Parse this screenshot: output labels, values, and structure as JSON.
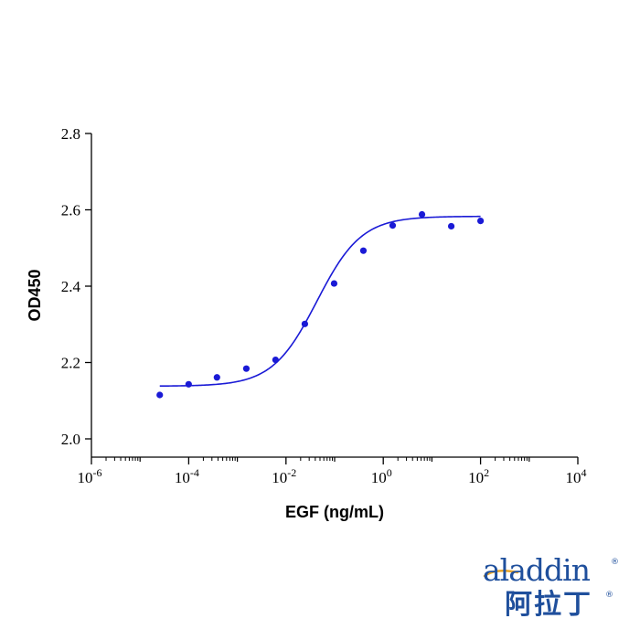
{
  "chart_data": {
    "type": "scatter",
    "title": "",
    "xlabel": "EGF (ng/mL)",
    "ylabel": "OD450",
    "x_scale": "log",
    "xlim": [
      1e-06,
      10000
    ],
    "ylim": [
      2.0,
      2.8
    ],
    "x_ticks": [
      {
        "value": 1e-06,
        "base": "10",
        "exp": "-6"
      },
      {
        "value": 0.0001,
        "base": "10",
        "exp": "-4"
      },
      {
        "value": 0.01,
        "base": "10",
        "exp": "-2"
      },
      {
        "value": 1,
        "base": "10",
        "exp": "0"
      },
      {
        "value": 100,
        "base": "10",
        "exp": "2"
      },
      {
        "value": 10000,
        "base": "10",
        "exp": "4"
      }
    ],
    "y_ticks": [
      {
        "value": 2.0,
        "label": "2.0"
      },
      {
        "value": 2.2,
        "label": "2.2"
      },
      {
        "value": 2.4,
        "label": "2.4"
      },
      {
        "value": 2.6,
        "label": "2.6"
      },
      {
        "value": 2.8,
        "label": "2.8"
      }
    ],
    "grid": false,
    "color": "#1a1ad6",
    "points": [
      {
        "x": 2.54e-05,
        "y": 2.115
      },
      {
        "x": 9.97e-05,
        "y": 2.143
      },
      {
        "x": 0.000381,
        "y": 2.161
      },
      {
        "x": 0.00153,
        "y": 2.184
      },
      {
        "x": 0.0061,
        "y": 2.207
      },
      {
        "x": 0.0244,
        "y": 2.301
      },
      {
        "x": 0.0976,
        "y": 2.407
      },
      {
        "x": 0.39,
        "y": 2.493
      },
      {
        "x": 1.56,
        "y": 2.559
      },
      {
        "x": 6.25,
        "y": 2.588
      },
      {
        "x": 25.0,
        "y": 2.557
      },
      {
        "x": 100,
        "y": 2.571
      }
    ],
    "fit": {
      "model": "4PL",
      "bottom": 2.138,
      "top": 2.583,
      "ec50": 0.0432,
      "hill": 0.95,
      "x_range": [
        2.54e-05,
        100
      ]
    }
  },
  "logo": {
    "text_en": "aladdin",
    "text_zh": "阿拉丁",
    "reg_mark": "®",
    "color": "#1f4f9c",
    "accent_color": "#e8a52a"
  }
}
